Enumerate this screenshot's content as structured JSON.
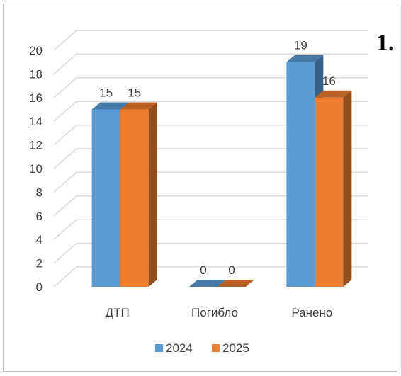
{
  "corner_label": "1.",
  "chart_data": {
    "type": "bar",
    "categories": [
      "ДТП",
      "Погибло",
      "Ранено"
    ],
    "series": [
      {
        "name": "2024",
        "values": [
          15,
          0,
          19
        ],
        "color": "#5b9bd5"
      },
      {
        "name": "2025",
        "values": [
          15,
          0,
          16
        ],
        "color": "#ed7d31"
      }
    ],
    "ylim": [
      0,
      20
    ],
    "yticks": [
      0,
      2,
      4,
      6,
      8,
      10,
      12,
      14,
      16,
      18,
      20
    ],
    "grid": true,
    "legend": "bottom",
    "three_d": true
  }
}
